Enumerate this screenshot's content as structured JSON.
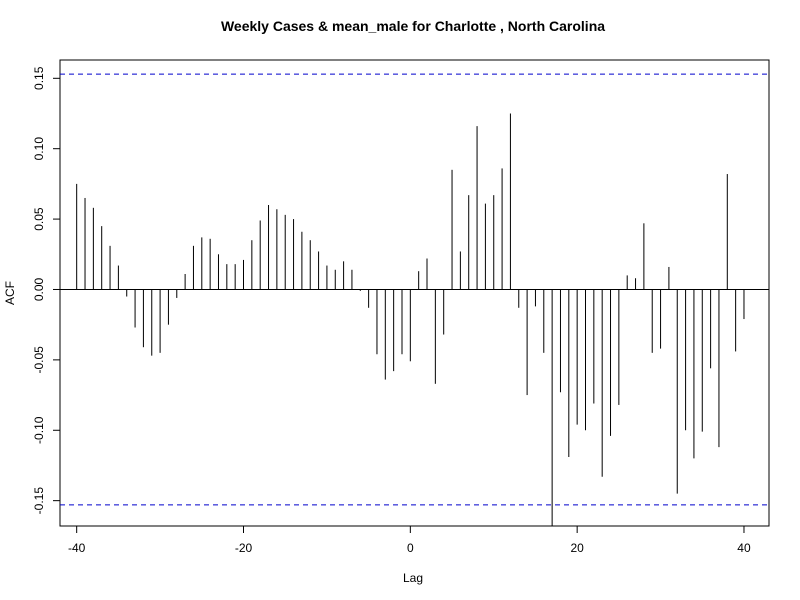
{
  "chart_data": {
    "type": "bar",
    "subtype": "acf-stem",
    "title": "Weekly Cases & mean_male for Charlotte , North Carolina",
    "xlabel": "Lag",
    "ylabel": "ACF",
    "xlim": [
      -42,
      43
    ],
    "ylim": [
      -0.168,
      0.163
    ],
    "x_ticks": [
      -40,
      -20,
      0,
      20,
      40
    ],
    "x_tick_labels": [
      "-40",
      "-20",
      "0",
      "20",
      "40"
    ],
    "y_ticks": [
      -0.15,
      -0.1,
      -0.05,
      0.0,
      0.05,
      0.1,
      0.15
    ],
    "y_tick_labels": [
      "-0.15",
      "-0.10",
      "-0.05",
      "0.00",
      "0.05",
      "0.10",
      "0.15"
    ],
    "confidence_bound": 0.153,
    "confidence_color": "#0000cc",
    "grid": false,
    "lags": [
      -40,
      -39,
      -38,
      -37,
      -36,
      -35,
      -34,
      -33,
      -32,
      -31,
      -30,
      -29,
      -28,
      -27,
      -26,
      -25,
      -24,
      -23,
      -22,
      -21,
      -20,
      -19,
      -18,
      -17,
      -16,
      -15,
      -14,
      -13,
      -12,
      -11,
      -10,
      -9,
      -8,
      -7,
      -6,
      -5,
      -4,
      -3,
      -2,
      -1,
      0,
      1,
      2,
      3,
      4,
      5,
      6,
      7,
      8,
      9,
      10,
      11,
      12,
      13,
      14,
      15,
      16,
      17,
      18,
      19,
      20,
      21,
      22,
      23,
      24,
      25,
      26,
      27,
      28,
      29,
      30,
      31,
      32,
      33,
      34,
      35,
      36,
      37,
      38,
      39,
      40
    ],
    "values": [
      0.075,
      0.065,
      0.058,
      0.045,
      0.031,
      0.017,
      -0.005,
      -0.027,
      -0.041,
      -0.047,
      -0.045,
      -0.025,
      -0.006,
      0.011,
      0.031,
      0.037,
      0.036,
      0.025,
      0.018,
      0.018,
      0.021,
      0.035,
      0.049,
      0.06,
      0.057,
      0.053,
      0.05,
      0.041,
      0.035,
      0.027,
      0.017,
      0.014,
      0.02,
      0.014,
      -0.001,
      -0.013,
      -0.046,
      -0.064,
      -0.058,
      -0.046,
      -0.051,
      0.013,
      0.022,
      -0.067,
      -0.032,
      0.085,
      0.027,
      0.067,
      0.116,
      0.061,
      0.067,
      0.086,
      0.125,
      -0.013,
      -0.075,
      -0.012,
      -0.045,
      -0.168,
      -0.073,
      -0.119,
      -0.096,
      -0.1,
      -0.081,
      -0.133,
      -0.104,
      -0.082,
      0.01,
      0.008,
      0.047,
      -0.045,
      -0.042,
      0.016,
      -0.145,
      -0.1,
      -0.12,
      -0.101,
      -0.056,
      -0.112,
      0.082,
      -0.044,
      -0.021
    ]
  }
}
